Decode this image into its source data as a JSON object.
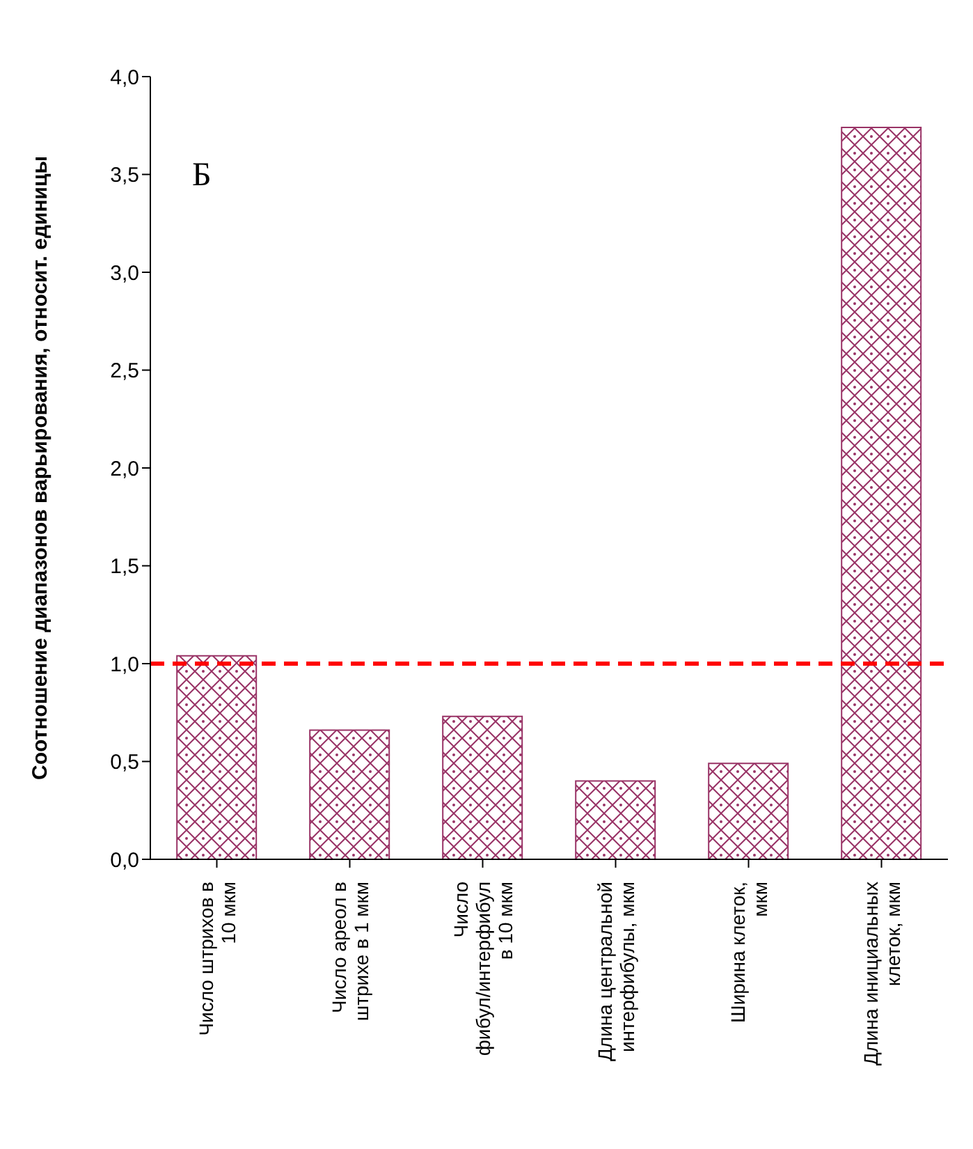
{
  "chart_data": {
    "type": "bar",
    "ylabel": "Соотношение диапазонов варьирования, относит. единицы",
    "categories": [
      "Число штрихов в 10 мкм",
      "Число ареол в штрихе в 1 мкм",
      "Число фибул/интерфибул в 10 мкм",
      "Длина центральной интерфибулы, мкм",
      "Ширина клеток, мкм",
      "Длина инициальных клеток, мкм"
    ],
    "values": [
      1.04,
      0.66,
      0.73,
      0.4,
      0.49,
      3.74
    ],
    "color": "#993366",
    "ylim": [
      0,
      4
    ],
    "yticks": [
      {
        "value": 0,
        "label": "0,0"
      },
      {
        "value": 0.5,
        "label": "0,5"
      },
      {
        "value": 1,
        "label": "1,0"
      },
      {
        "value": 1.5,
        "label": "1,5"
      },
      {
        "value": 2,
        "label": "2,0"
      },
      {
        "value": 2.5,
        "label": "2,5"
      },
      {
        "value": 3,
        "label": "3,0"
      },
      {
        "value": 3.5,
        "label": "3,5"
      },
      {
        "value": 4,
        "label": "4,0"
      }
    ],
    "ref_lines": [
      {
        "axis": "y",
        "value": 1,
        "color": "#ff0000",
        "line_style": "dashed"
      }
    ],
    "annotations": [
      "Б"
    ]
  }
}
